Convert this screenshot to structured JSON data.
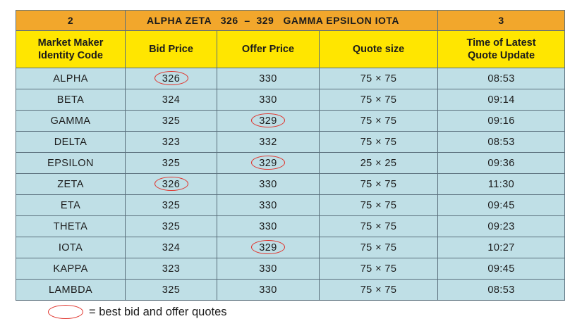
{
  "summary": {
    "left_number": "2",
    "inside_quote": "ALPHA ZETA   326  –  329   GAMMA EPSILON IOTA",
    "right_number": "3"
  },
  "headers": [
    "Market Maker Identity Code",
    "Bid Price",
    "Offer Price",
    "Quote size",
    "Time of Latest Quote Update"
  ],
  "rows": [
    {
      "code": "ALPHA",
      "bid": "326",
      "offer": "330",
      "size": "75 × 75",
      "time": "08:53",
      "best_bid": true,
      "best_offer": false
    },
    {
      "code": "BETA",
      "bid": "324",
      "offer": "330",
      "size": "75 × 75",
      "time": "09:14",
      "best_bid": false,
      "best_offer": false
    },
    {
      "code": "GAMMA",
      "bid": "325",
      "offer": "329",
      "size": "75 × 75",
      "time": "09:16",
      "best_bid": false,
      "best_offer": true
    },
    {
      "code": "DELTA",
      "bid": "323",
      "offer": "332",
      "size": "75 × 75",
      "time": "08:53",
      "best_bid": false,
      "best_offer": false
    },
    {
      "code": "EPSILON",
      "bid": "325",
      "offer": "329",
      "size": "25 × 25",
      "time": "09:36",
      "best_bid": false,
      "best_offer": true
    },
    {
      "code": "ZETA",
      "bid": "326",
      "offer": "330",
      "size": "75 × 75",
      "time": "11:30",
      "best_bid": true,
      "best_offer": false
    },
    {
      "code": "ETA",
      "bid": "325",
      "offer": "330",
      "size": "75 × 75",
      "time": "09:45",
      "best_bid": false,
      "best_offer": false
    },
    {
      "code": "THETA",
      "bid": "325",
      "offer": "330",
      "size": "75 × 75",
      "time": "09:23",
      "best_bid": false,
      "best_offer": false
    },
    {
      "code": "IOTA",
      "bid": "324",
      "offer": "329",
      "size": "75 × 75",
      "time": "10:27",
      "best_bid": false,
      "best_offer": true
    },
    {
      "code": "KAPPA",
      "bid": "323",
      "offer": "330",
      "size": "75 × 75",
      "time": "09:45",
      "best_bid": false,
      "best_offer": false
    },
    {
      "code": "LAMBDA",
      "bid": "325",
      "offer": "330",
      "size": "75 × 75",
      "time": "08:53",
      "best_bid": false,
      "best_offer": false
    }
  ],
  "legend": {
    "icon": "red-ellipse-icon",
    "text": "= best bid and offer quotes"
  },
  "colors": {
    "summary_bg": "#f2a72c",
    "header_bg": "#ffe600",
    "row_bg": "#bfdfe6",
    "highlight_ring": "#e0332c",
    "border": "#5a6f7c"
  }
}
